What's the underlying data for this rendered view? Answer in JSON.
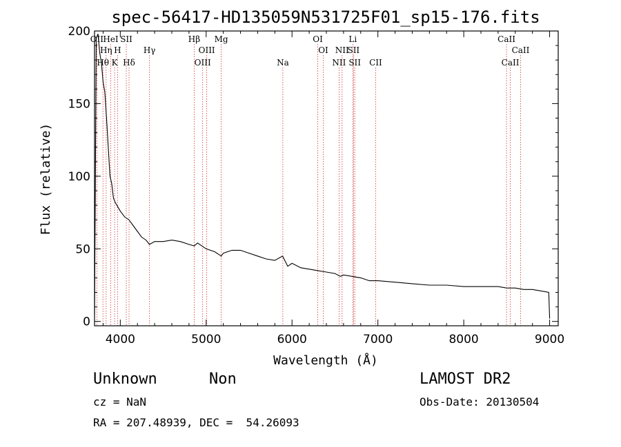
{
  "chart_data": {
    "type": "line",
    "title": "spec-56417-HD135059N531725F01_sp15-176.fits",
    "xlabel": "Wavelength (Å)",
    "ylabel": "Flux (relative)",
    "xlim": [
      3700,
      9100
    ],
    "ylim": [
      -3,
      200
    ],
    "x_ticks": [
      4000,
      5000,
      6000,
      7000,
      8000,
      9000
    ],
    "y_ticks": [
      0,
      50,
      100,
      150,
      200
    ],
    "x_tick_labels": [
      "4000",
      "5000",
      "6000",
      "7000",
      "8000",
      "9000"
    ],
    "y_tick_labels": [
      "0",
      "50",
      "100",
      "150",
      "200"
    ],
    "grid": false,
    "series": [
      {
        "x": [
          3700,
          3720,
          3740,
          3760,
          3780,
          3800,
          3820,
          3840,
          3860,
          3880,
          3900,
          3920,
          3940,
          3960,
          3980,
          4000,
          4050,
          4100,
          4150,
          4200,
          4250,
          4300,
          4340,
          4400,
          4500,
          4600,
          4700,
          4800,
          4861,
          4900,
          5000,
          5100,
          5175,
          5200,
          5300,
          5400,
          5500,
          5600,
          5700,
          5800,
          5890,
          5950,
          6000,
          6100,
          6200,
          6300,
          6400,
          6500,
          6563,
          6600,
          6700,
          6800,
          6900,
          7000,
          7200,
          7400,
          7600,
          7800,
          8000,
          8200,
          8400,
          8500,
          8600,
          8700,
          8800,
          8900,
          8990,
          9000
        ],
        "y": [
          5,
          195,
          198,
          185,
          178,
          165,
          158,
          140,
          120,
          100,
          95,
          85,
          82,
          80,
          78,
          76,
          72,
          70,
          66,
          62,
          58,
          56,
          53,
          55,
          55,
          56,
          55,
          53,
          52,
          54,
          50,
          48,
          45,
          47,
          49,
          49,
          47,
          45,
          43,
          42,
          45,
          38,
          40,
          37,
          36,
          35,
          34,
          33,
          31,
          32,
          31,
          30,
          28,
          28,
          27,
          26,
          25,
          25,
          24,
          24,
          24,
          23,
          23,
          22,
          22,
          21,
          20,
          2
        ]
      }
    ],
    "line_markers": [
      {
        "name": "OII",
        "x": 3727,
        "row": 0
      },
      {
        "name": "HeI",
        "x": 3889,
        "row": 0
      },
      {
        "name": "SII",
        "x": 4070,
        "row": 0
      },
      {
        "name": "Hβ",
        "x": 4861,
        "row": 0
      },
      {
        "name": "Mg",
        "x": 5175,
        "row": 0
      },
      {
        "name": "OI",
        "x": 6300,
        "row": 0
      },
      {
        "name": "Li",
        "x": 6708,
        "row": 0
      },
      {
        "name": "CaII",
        "x": 8498,
        "row": 0
      },
      {
        "name": "Hη",
        "x": 3835,
        "row": 1
      },
      {
        "name": "H",
        "x": 3968,
        "row": 1
      },
      {
        "name": "Hγ",
        "x": 4340,
        "row": 1
      },
      {
        "name": "OIII",
        "x": 5007,
        "row": 1
      },
      {
        "name": "OI",
        "x": 6364,
        "row": 1
      },
      {
        "name": "NII",
        "x": 6583,
        "row": 1
      },
      {
        "name": "SII",
        "x": 6716,
        "row": 1
      },
      {
        "name": "CaII",
        "x": 8662,
        "row": 1
      },
      {
        "name": "Hθ",
        "x": 3798,
        "row": 2
      },
      {
        "name": "K",
        "x": 3934,
        "row": 2
      },
      {
        "name": "Hδ",
        "x": 4102,
        "row": 2
      },
      {
        "name": "OIII",
        "x": 4959,
        "row": 2
      },
      {
        "name": "Na",
        "x": 5893,
        "row": 2
      },
      {
        "name": "NII",
        "x": 6548,
        "row": 2
      },
      {
        "name": "SII",
        "x": 6731,
        "row": 2
      },
      {
        "name": "CII",
        "x": 6974,
        "row": 2
      },
      {
        "name": "CaII",
        "x": 8542,
        "row": 2
      }
    ]
  },
  "info": {
    "class": "Unknown",
    "subclass": "Non",
    "survey": "LAMOST DR2",
    "cz": "cz = NaN",
    "obs_date": "Obs-Date: 20130504",
    "coords": "RA = 207.48939, DEC =  54.26093"
  },
  "colors": {
    "spectrum": "#000000",
    "marker_line": "#cc3333"
  }
}
